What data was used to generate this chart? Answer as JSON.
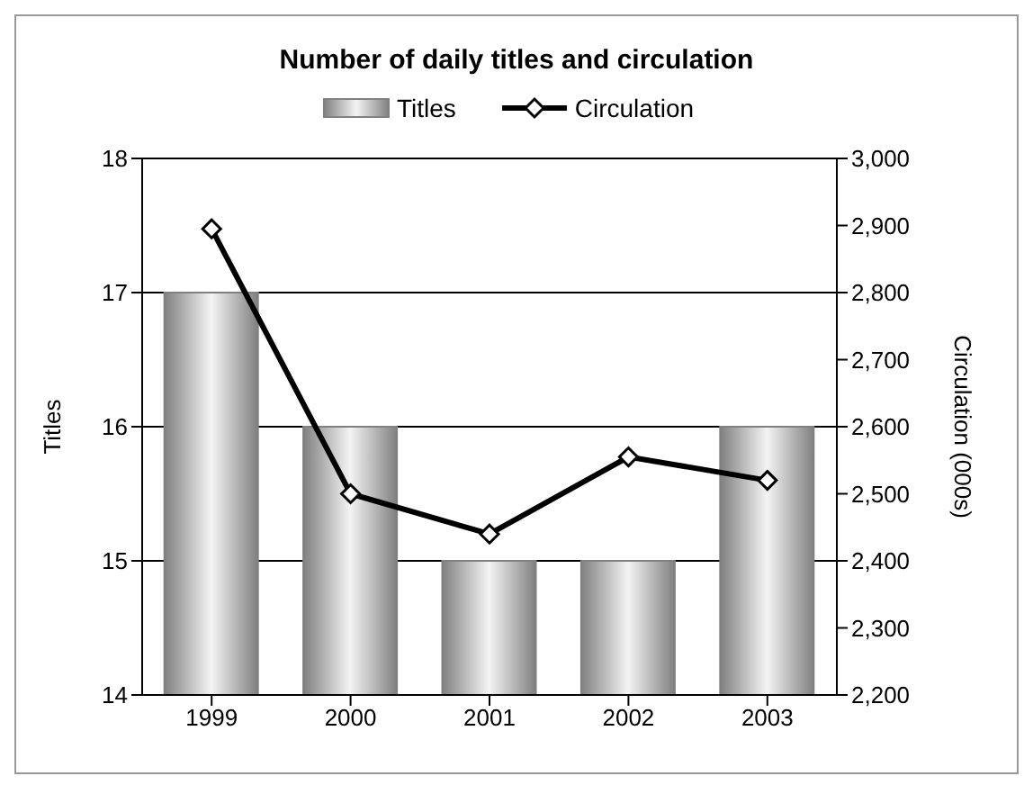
{
  "chart_data": {
    "type": "bar",
    "title": "Number of daily titles and circulation",
    "categories": [
      "1999",
      "2000",
      "2001",
      "2002",
      "2003"
    ],
    "series": [
      {
        "name": "Titles",
        "color": "#808080",
        "values": [
          17,
          16,
          15,
          15,
          16
        ]
      },
      {
        "name": "Circulation",
        "type": "line",
        "axis": "y2",
        "color": "#000000",
        "marker": "diamond",
        "values": [
          2895,
          2500,
          2440,
          2555,
          2520
        ]
      }
    ],
    "ylabel": "Titles",
    "y2label": "Circulation (000s)",
    "ylim": [
      14,
      18
    ],
    "yticks": [
      14,
      15,
      16,
      17,
      18
    ],
    "y2lim": [
      2200,
      3000
    ],
    "y2ticks": [
      {
        "value": 2200,
        "label": "2,200"
      },
      {
        "value": 2300,
        "label": "2,300"
      },
      {
        "value": 2400,
        "label": "2,400"
      },
      {
        "value": 2500,
        "label": "2,500"
      },
      {
        "value": 2600,
        "label": "2,600"
      },
      {
        "value": 2700,
        "label": "2,700"
      },
      {
        "value": 2800,
        "label": "2,800"
      },
      {
        "value": 2900,
        "label": "2,900"
      },
      {
        "value": 3000,
        "label": "3,000"
      }
    ],
    "grid": "y",
    "legend": "top"
  }
}
